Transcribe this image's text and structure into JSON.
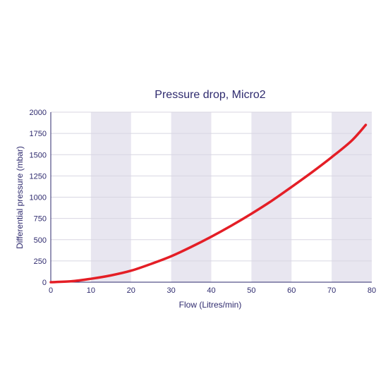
{
  "chart_data": {
    "type": "line",
    "title": "Pressure drop, Micro2",
    "xlabel": "Flow (Litres/min)",
    "ylabel": "Differential pressure (mbar)",
    "xlim": [
      0,
      80
    ],
    "ylim": [
      0,
      2000
    ],
    "x_ticks": [
      "0",
      "10",
      "20",
      "30",
      "40",
      "50",
      "60",
      "70",
      "80"
    ],
    "y_ticks": [
      "0",
      "250",
      "500",
      "750",
      "1000",
      "1250",
      "1500",
      "1750",
      "2000"
    ],
    "grid": true,
    "shaded_bands": [
      [
        10,
        20
      ],
      [
        30,
        40
      ],
      [
        50,
        60
      ],
      [
        70,
        80
      ]
    ],
    "series": [
      {
        "color": "#e41e26",
        "x": [
          0,
          5,
          10,
          15,
          20,
          25,
          30,
          35,
          40,
          45,
          50,
          55,
          60,
          65,
          70,
          75,
          78.5
        ],
        "y": [
          0,
          10,
          40,
          80,
          135,
          215,
          305,
          415,
          535,
          665,
          805,
          955,
          1120,
          1290,
          1470,
          1665,
          1850
        ]
      }
    ],
    "colors": {
      "band": "#e8e6f0",
      "grid": "#d8d6e2",
      "axis": "#2e2a6e",
      "text": "#2e2a6e",
      "series": "#e41e26"
    }
  }
}
